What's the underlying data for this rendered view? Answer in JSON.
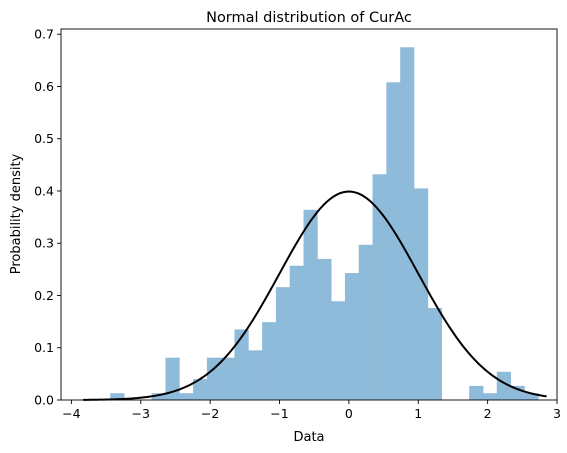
{
  "chart_data": {
    "type": "bar",
    "title": "Normal distribution of CurAc",
    "xlabel": "Data",
    "ylabel": "Probability density",
    "xlim": [
      -4.15,
      3.0
    ],
    "ylim": [
      0,
      0.71
    ],
    "xticks": [
      -4,
      -3,
      -2,
      -1,
      0,
      1,
      2,
      3
    ],
    "yticks": [
      0.0,
      0.1,
      0.2,
      0.3,
      0.4,
      0.5,
      0.6,
      0.7
    ],
    "xtick_labels": [
      "−4",
      "−3",
      "−2",
      "−1",
      "0",
      "1",
      "2",
      "3"
    ],
    "ytick_labels": [
      "0.0",
      "0.1",
      "0.2",
      "0.3",
      "0.4",
      "0.5",
      "0.6",
      "0.7"
    ],
    "grid": false,
    "histogram": {
      "color": "#8fbbda",
      "bin_start": -3.44,
      "bin_width": 0.199,
      "densities": [
        0.013,
        0.0,
        0.0,
        0.013,
        0.081,
        0.013,
        0.04,
        0.081,
        0.081,
        0.135,
        0.095,
        0.149,
        0.216,
        0.257,
        0.364,
        0.27,
        0.189,
        0.243,
        0.297,
        0.432,
        0.608,
        0.675,
        0.405,
        0.176,
        0.0,
        0.0,
        0.027,
        0.013,
        0.054,
        0.027,
        0.013
      ]
    },
    "curve": {
      "type": "normal-pdf",
      "mean": 0,
      "std": 1,
      "x_range": [
        -3.83,
        2.85
      ],
      "color": "#000000"
    }
  }
}
